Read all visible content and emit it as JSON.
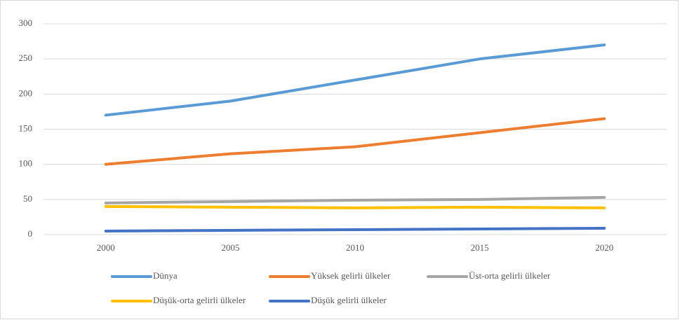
{
  "chart_data": {
    "type": "line",
    "categories": [
      "2000",
      "2005",
      "2010",
      "2015",
      "2020"
    ],
    "series": [
      {
        "name": "Dünya",
        "color": "#5b9bd5",
        "values": [
          170,
          190,
          220,
          250,
          270
        ]
      },
      {
        "name": "Yüksek gelirli ülkeler",
        "color": "#ed7d31",
        "values": [
          100,
          115,
          125,
          145,
          165
        ]
      },
      {
        "name": "Üst-orta gelirli ülkeler",
        "color": "#a5a5a5",
        "values": [
          45,
          47,
          49,
          50,
          53
        ]
      },
      {
        "name": "Düşük-orta gelirli ülkeler",
        "color": "#ffc000",
        "values": [
          40,
          39,
          38,
          39,
          38
        ]
      },
      {
        "name": "Düşük gelirli ülkeler",
        "color": "#4472c4",
        "values": [
          5,
          6,
          7,
          8,
          9
        ]
      }
    ],
    "ylim": [
      0,
      300
    ],
    "yticks": [
      0,
      50,
      100,
      150,
      200,
      250,
      300
    ],
    "grid": true,
    "legend": "bottom"
  }
}
